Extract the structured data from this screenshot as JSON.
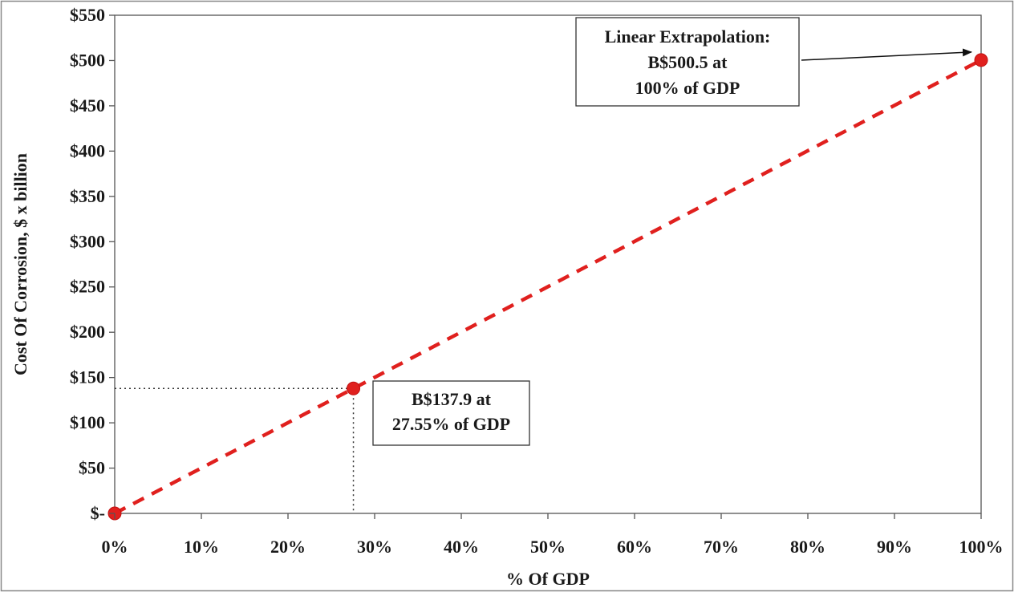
{
  "chart_data": {
    "type": "line",
    "xlabel": "% Of GDP",
    "ylabel": "Cost Of Corrosion, $ x billion",
    "xlim": [
      0,
      100
    ],
    "ylim": [
      0,
      550
    ],
    "x_ticks": [
      {
        "value": 0,
        "label": "0%"
      },
      {
        "value": 10,
        "label": "10%"
      },
      {
        "value": 20,
        "label": "20%"
      },
      {
        "value": 30,
        "label": "30%"
      },
      {
        "value": 40,
        "label": "40%"
      },
      {
        "value": 50,
        "label": "50%"
      },
      {
        "value": 60,
        "label": "60%"
      },
      {
        "value": 70,
        "label": "70%"
      },
      {
        "value": 80,
        "label": "80%"
      },
      {
        "value": 90,
        "label": "90%"
      },
      {
        "value": 100,
        "label": "100%"
      }
    ],
    "y_ticks": [
      {
        "value": 0,
        "label": "$-"
      },
      {
        "value": 50,
        "label": "$50"
      },
      {
        "value": 100,
        "label": "$100"
      },
      {
        "value": 150,
        "label": "$150"
      },
      {
        "value": 200,
        "label": "$200"
      },
      {
        "value": 250,
        "label": "$250"
      },
      {
        "value": 300,
        "label": "$300"
      },
      {
        "value": 350,
        "label": "$350"
      },
      {
        "value": 400,
        "label": "$400"
      },
      {
        "value": 450,
        "label": "$450"
      },
      {
        "value": 500,
        "label": "$500"
      },
      {
        "value": 550,
        "label": "$550"
      }
    ],
    "grid": false,
    "series": [
      {
        "points": [
          {
            "x": 0,
            "y": 0
          },
          {
            "x": 27.55,
            "y": 137.9
          },
          {
            "x": 100,
            "y": 500.5
          }
        ],
        "line_style": "dashed",
        "color": "#e0201e"
      }
    ],
    "reference_lines": {
      "x": 27.55,
      "y": 137.9,
      "style": "dotted"
    },
    "annotations": [
      {
        "lines": [
          "B$137.9 at",
          "27.55% of GDP"
        ],
        "point_x": 27.55,
        "point_y": 137.9
      },
      {
        "lines": [
          "Linear Extrapolation:",
          "B$500.5 at",
          "100% of GDP"
        ],
        "point_x": 100,
        "point_y": 500.5,
        "arrow": true
      }
    ]
  }
}
